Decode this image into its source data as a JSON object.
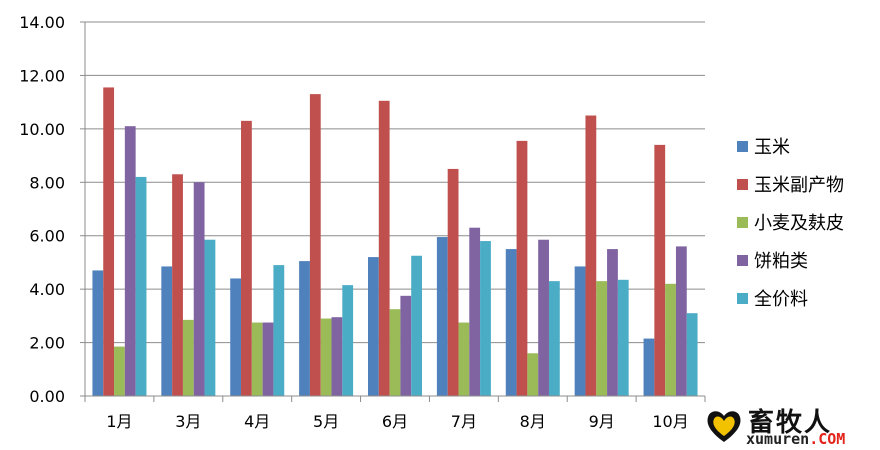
{
  "chart_data": {
    "type": "bar",
    "title": "",
    "xlabel": "",
    "ylabel": "",
    "ylim": [
      0,
      14
    ],
    "yticks": [
      "0.00",
      "2.00",
      "4.00",
      "6.00",
      "8.00",
      "10.00",
      "12.00",
      "14.00"
    ],
    "grid": true,
    "legend_position": "right",
    "categories": [
      "1月",
      "3月",
      "4月",
      "5月",
      "6月",
      "7月",
      "8月",
      "9月",
      "10月"
    ],
    "series": [
      {
        "name": "玉米",
        "color": "#4f81bd",
        "values": [
          4.7,
          4.85,
          4.4,
          5.05,
          5.2,
          5.95,
          5.5,
          4.85,
          2.15
        ]
      },
      {
        "name": "玉米副产物",
        "color": "#c0504d",
        "values": [
          11.55,
          8.3,
          10.3,
          11.3,
          11.05,
          8.5,
          9.55,
          10.5,
          9.4
        ]
      },
      {
        "name": "小麦及麸皮",
        "color": "#9bbb59",
        "values": [
          1.85,
          2.85,
          2.75,
          2.9,
          3.25,
          2.75,
          1.6,
          4.3,
          4.2
        ]
      },
      {
        "name": "饼粕类",
        "color": "#8064a2",
        "values": [
          10.1,
          8.0,
          2.75,
          2.95,
          3.75,
          6.3,
          5.85,
          5.5,
          5.6
        ]
      },
      {
        "name": "全价料",
        "color": "#4bacc6",
        "values": [
          8.2,
          5.85,
          4.9,
          4.15,
          5.25,
          5.8,
          4.3,
          4.35,
          3.1
        ]
      }
    ]
  },
  "watermark": {
    "name": "畜牧人",
    "domain_main": "xumuren",
    "domain_suffix": ".COM"
  }
}
